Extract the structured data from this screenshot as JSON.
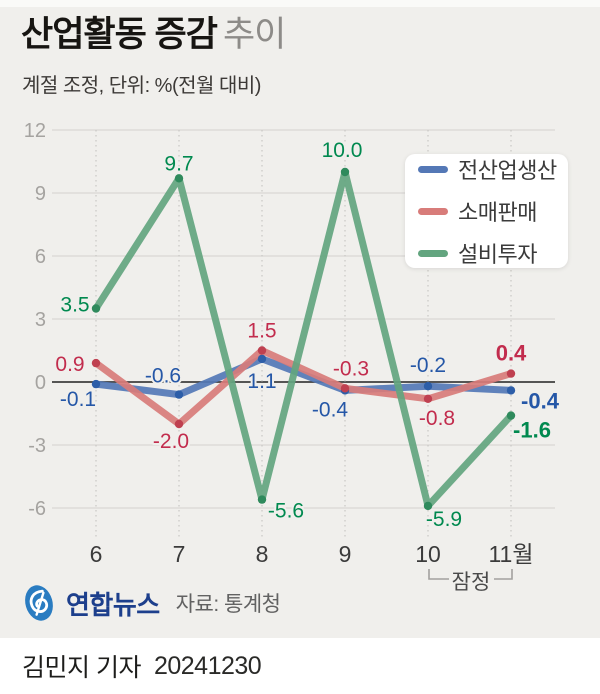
{
  "page": {
    "background": "#f0efec",
    "top_strip": "#fafaf8",
    "credit_bar_background": "#ffffff"
  },
  "header": {
    "title_bold": "산업활동 증감",
    "title_light": "추이",
    "subtitle": "계절 조정, 단위: %(전월 대비)"
  },
  "chart_data": {
    "type": "line",
    "title": "산업활동 증감 추이",
    "unit_note": "계절 조정, 단위: %(전월 대비)",
    "categories": [
      "6",
      "7",
      "8",
      "9",
      "10",
      "11월"
    ],
    "series": [
      {
        "name": "전산업생산",
        "values": [
          -0.1,
          -0.6,
          1.1,
          -0.4,
          -0.2,
          -0.4
        ],
        "color": "#5478b6",
        "dot_color": "#2d5ea8",
        "label_color": "#2557a7",
        "label_offsets": [
          [
            -18,
            22
          ],
          [
            -16,
            -12
          ],
          [
            0,
            29
          ],
          [
            -15,
            26
          ],
          [
            0,
            -14
          ],
          [
            29,
            18
          ]
        ]
      },
      {
        "name": "소매판매",
        "values": [
          0.9,
          -2.0,
          1.5,
          -0.3,
          -0.8,
          0.4
        ],
        "color": "#d87c7a",
        "dot_color": "#bf4050",
        "label_color": "#c22c4d",
        "label_offsets": [
          [
            -26,
            8
          ],
          [
            -8,
            24
          ],
          [
            0,
            -13
          ],
          [
            6,
            -13
          ],
          [
            9,
            26
          ],
          [
            0,
            -13
          ]
        ]
      },
      {
        "name": "설비투자",
        "values": [
          3.5,
          9.7,
          -5.6,
          10.0,
          -5.9,
          -1.6
        ],
        "color": "#63a57f",
        "dot_color": "#2f8a5c",
        "label_color": "#00894f",
        "label_offsets": [
          [
            -21,
            3
          ],
          [
            0,
            -8
          ],
          [
            24,
            18
          ],
          [
            -3,
            -15
          ],
          [
            16,
            20
          ],
          [
            21,
            22
          ]
        ]
      }
    ],
    "yticks": [
      12,
      9,
      6,
      3,
      0,
      -3,
      -6
    ],
    "ylim": [
      -7.5,
      13
    ],
    "grid": true,
    "legend_position": "top-right",
    "bold_last_point": true,
    "provisional_label": "잠정",
    "provisional_range": [
      "10",
      "11월"
    ]
  },
  "footer": {
    "brand": "연합뉴스",
    "source": "자료: 통계청"
  },
  "credit": {
    "reporter": "김민지 기자",
    "date": "20241230"
  }
}
